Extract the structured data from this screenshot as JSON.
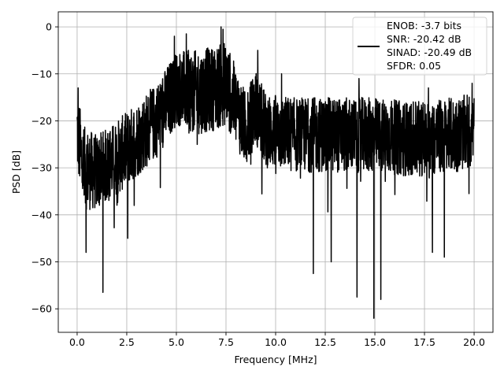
{
  "chart_data": {
    "type": "line",
    "xlabel": "Frequency [MHz]",
    "ylabel": "PSD [dB]",
    "xlim": [
      -0.95,
      20.95
    ],
    "ylim": [
      -65,
      3.2
    ],
    "xticks": [
      0.0,
      2.5,
      5.0,
      7.5,
      10.0,
      12.5,
      15.0,
      17.5,
      20.0
    ],
    "xtick_labels": [
      "0.0",
      "2.5",
      "5.0",
      "7.5",
      "10.0",
      "12.5",
      "15.0",
      "17.5",
      "20.0"
    ],
    "yticks": [
      0,
      -10,
      -20,
      -30,
      -40,
      -50,
      -60
    ],
    "ytick_labels": [
      "0",
      "−10",
      "−20",
      "−30",
      "−40",
      "−50",
      "−60"
    ],
    "grid": true,
    "legend_position": "top-right",
    "series": [
      {
        "legend_lines": [
          "ENOB: -3.7 bits",
          "SNR: -20.42 dB",
          "SINAD: -20.49 dB",
          "SFDR: 0.05"
        ],
        "color": "#000000",
        "envelope": [
          {
            "x": 0.0,
            "mean": -22,
            "spread": 9
          },
          {
            "x": 0.3,
            "mean": -30,
            "spread": 9
          },
          {
            "x": 1.0,
            "mean": -31,
            "spread": 8
          },
          {
            "x": 2.0,
            "mean": -28,
            "spread": 8
          },
          {
            "x": 3.0,
            "mean": -24,
            "spread": 8
          },
          {
            "x": 4.0,
            "mean": -20,
            "spread": 8
          },
          {
            "x": 5.0,
            "mean": -13,
            "spread": 8
          },
          {
            "x": 6.0,
            "mean": -14,
            "spread": 9
          },
          {
            "x": 7.0,
            "mean": -13,
            "spread": 9
          },
          {
            "x": 7.5,
            "mean": -12,
            "spread": 9
          },
          {
            "x": 8.5,
            "mean": -22,
            "spread": 8
          },
          {
            "x": 9.0,
            "mean": -17,
            "spread": 8
          },
          {
            "x": 9.5,
            "mean": -22,
            "spread": 8
          },
          {
            "x": 11.0,
            "mean": -23,
            "spread": 8
          },
          {
            "x": 13.0,
            "mean": -23,
            "spread": 8
          },
          {
            "x": 15.0,
            "mean": -23,
            "spread": 8
          },
          {
            "x": 17.0,
            "mean": -24,
            "spread": 8
          },
          {
            "x": 19.0,
            "mean": -23,
            "spread": 8
          },
          {
            "x": 20.0,
            "mean": -22,
            "spread": 8
          }
        ],
        "peaks": [
          {
            "x": 0.05,
            "y": -13
          },
          {
            "x": 4.9,
            "y": -2
          },
          {
            "x": 5.5,
            "y": -1.5
          },
          {
            "x": 7.25,
            "y": 0
          },
          {
            "x": 7.35,
            "y": -0.5
          },
          {
            "x": 9.1,
            "y": -5
          },
          {
            "x": 10.3,
            "y": -10
          },
          {
            "x": 14.2,
            "y": -11
          },
          {
            "x": 17.7,
            "y": -13
          },
          {
            "x": 19.9,
            "y": -12
          }
        ],
        "dips": [
          {
            "x": 0.45,
            "y": -48
          },
          {
            "x": 1.3,
            "y": -56.5
          },
          {
            "x": 2.55,
            "y": -45
          },
          {
            "x": 11.9,
            "y": -52.5
          },
          {
            "x": 14.1,
            "y": -57.5
          },
          {
            "x": 14.95,
            "y": -62
          },
          {
            "x": 15.3,
            "y": -58
          },
          {
            "x": 12.8,
            "y": -50
          },
          {
            "x": 17.9,
            "y": -48
          },
          {
            "x": 18.5,
            "y": -49
          }
        ]
      }
    ]
  }
}
